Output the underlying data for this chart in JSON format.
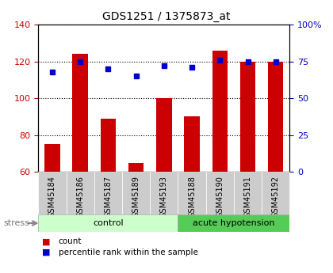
{
  "title": "GDS1251 / 1375873_at",
  "samples": [
    "GSM45184",
    "GSM45186",
    "GSM45187",
    "GSM45189",
    "GSM45193",
    "GSM45188",
    "GSM45190",
    "GSM45191",
    "GSM45192"
  ],
  "counts": [
    75,
    124,
    89,
    65,
    100,
    90,
    126,
    120,
    120
  ],
  "percentiles": [
    68,
    75,
    70,
    65,
    72,
    71,
    76,
    75,
    75
  ],
  "bar_color": "#cc0000",
  "dot_color": "#0000cc",
  "left_ylim": [
    60,
    140
  ],
  "right_ylim": [
    0,
    100
  ],
  "left_yticks": [
    60,
    80,
    100,
    120,
    140
  ],
  "right_yticks": [
    0,
    25,
    50,
    75,
    100
  ],
  "right_yticklabels": [
    "0",
    "25",
    "50",
    "75",
    "100%"
  ],
  "groups": [
    {
      "label": "control",
      "start": 0,
      "end": 5,
      "color": "#ccffcc"
    },
    {
      "label": "acute hypotension",
      "start": 5,
      "end": 9,
      "color": "#55cc55"
    }
  ],
  "stress_label": "stress",
  "legend_items": [
    {
      "label": "count",
      "color": "#cc0000"
    },
    {
      "label": "percentile rank within the sample",
      "color": "#0000cc"
    }
  ],
  "background_color": "#ffffff",
  "plot_bg_color": "#ffffff",
  "tick_bg_color": "#cccccc"
}
